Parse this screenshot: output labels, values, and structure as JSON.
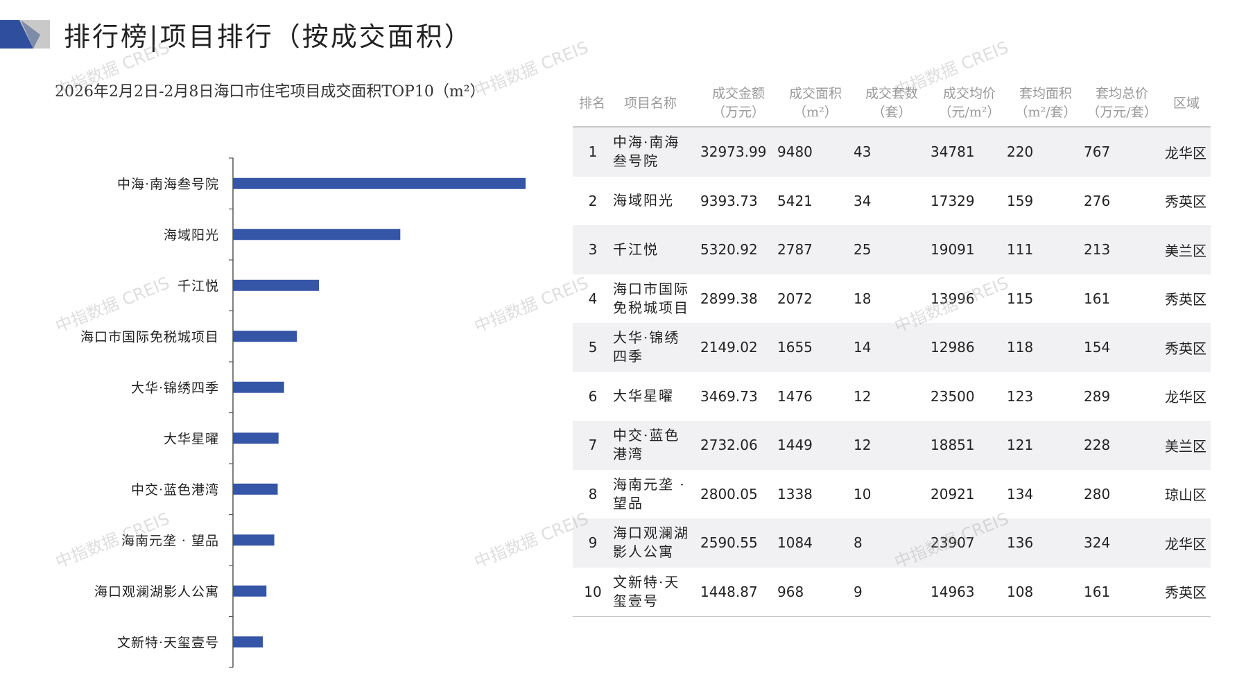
{
  "header": {
    "title": "排行榜|项目排行（按成交面积）"
  },
  "watermark": "中指数据 CREIS",
  "chart_data": {
    "type": "bar",
    "orientation": "horizontal",
    "subtitle": "2026年2月2日-2月8日海口市住宅项目成交面积TOP10（m²）",
    "categories": [
      "中海·南海叁号院",
      "海域阳光",
      "千江悦",
      "海口市国际免税城项目",
      "大华·锦绣四季",
      "大华星曜",
      "中交·蓝色港湾",
      "海南元垄 · 望品",
      "海口观澜湖影人公寓",
      "文新特·天玺壹号"
    ],
    "values": [
      9480,
      5421,
      2787,
      2072,
      1655,
      1476,
      1449,
      1338,
      1084,
      968
    ],
    "color": "#3555a6"
  },
  "table": {
    "columns": [
      [
        "排名"
      ],
      [
        "项目名称"
      ],
      [
        "成交金额",
        "（万元）"
      ],
      [
        "成交面积",
        "（m²）"
      ],
      [
        "成交套数",
        "（套）"
      ],
      [
        "成交均价",
        "（元/m²）"
      ],
      [
        "套均面积",
        "（m²/套）"
      ],
      [
        "套均总价",
        "（万元/套）"
      ],
      [
        "区域"
      ]
    ],
    "rows": [
      [
        "1",
        "中海·南海叁号院",
        "32973.99",
        "9480",
        "43",
        "34781",
        "220",
        "767",
        "龙华区"
      ],
      [
        "2",
        "海域阳光",
        "9393.73",
        "5421",
        "34",
        "17329",
        "159",
        "276",
        "秀英区"
      ],
      [
        "3",
        "千江悦",
        "5320.92",
        "2787",
        "25",
        "19091",
        "111",
        "213",
        "美兰区"
      ],
      [
        "4",
        "海口市国际免税城项目",
        "2899.38",
        "2072",
        "18",
        "13996",
        "115",
        "161",
        "秀英区"
      ],
      [
        "5",
        "大华·锦绣四季",
        "2149.02",
        "1655",
        "14",
        "12986",
        "118",
        "154",
        "秀英区"
      ],
      [
        "6",
        "大华星曜",
        "3469.73",
        "1476",
        "12",
        "23500",
        "123",
        "289",
        "龙华区"
      ],
      [
        "7",
        "中交·蓝色港湾",
        "2732.06",
        "1449",
        "12",
        "18851",
        "121",
        "228",
        "美兰区"
      ],
      [
        "8",
        "海南元垄 ·望品",
        "2800.05",
        "1338",
        "10",
        "20921",
        "134",
        "280",
        "琼山区"
      ],
      [
        "9",
        "海口观澜湖影人公寓",
        "2590.55",
        "1084",
        "8",
        "23907",
        "136",
        "324",
        "龙华区"
      ],
      [
        "10",
        "文新特·天玺壹号",
        "1448.87",
        "968",
        "9",
        "14963",
        "108",
        "161",
        "秀英区"
      ]
    ]
  }
}
